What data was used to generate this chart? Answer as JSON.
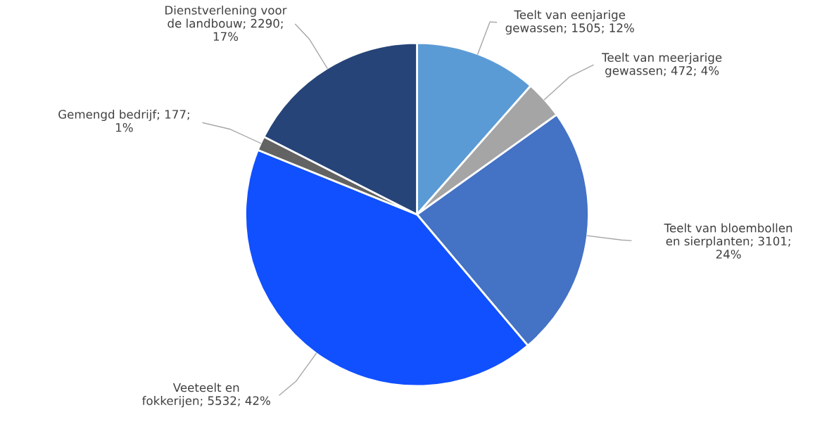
{
  "chart_data": {
    "type": "pie",
    "categories": [
      "Teelt van eenjarige\ngewassen",
      "Teelt van meerjarige\ngewassen",
      "Teelt van bloembollen\nen sierplanten",
      "Veeteelt en\nfokkerijen",
      "Gemengd bedrijf",
      "Dienstverlening voor\nde landbouw"
    ],
    "values": [
      1505,
      472,
      3101,
      5532,
      177,
      2290
    ],
    "value_labels": [
      "1505; 12%",
      "472; 4%",
      "3101;\n24%",
      "5532; 42%",
      "177;\n1%",
      "2290;\n17%"
    ],
    "colors": [
      "#5b9bd5",
      "#a5a5a5",
      "#4472c4",
      "#1150ff",
      "#636363",
      "#264478"
    ],
    "legend": false
  }
}
